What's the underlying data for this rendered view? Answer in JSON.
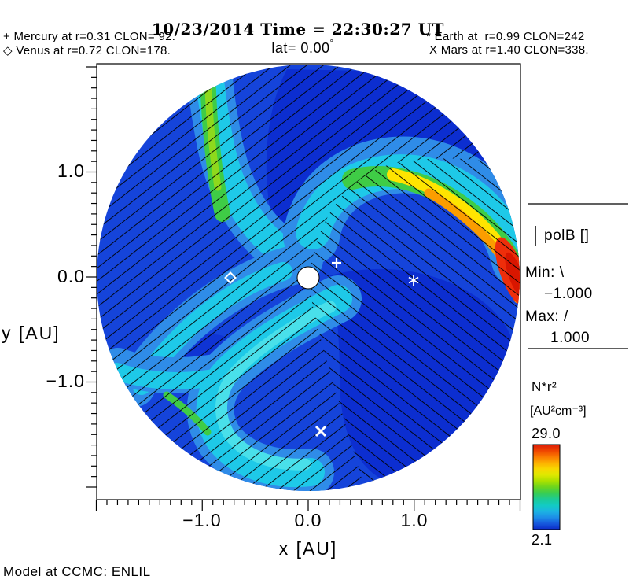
{
  "title": {
    "date_time": "10/23/2014 Time = 22:30:27 UT",
    "latitude": "lat= 0.00",
    "degree_symbol": "°"
  },
  "planet_labels": {
    "mercury": {
      "symbol": "+",
      "text": "Mercury at r=0.31 CLON= 92."
    },
    "venus": {
      "symbol": "◇",
      "text": "Venus at r=0.72 CLON=178."
    },
    "earth": {
      "symbol": "*",
      "text": "Earth at  r=0.99 CLON=242"
    },
    "mars": {
      "symbol": "X",
      "text": "Mars at r=1.40 CLON=338."
    }
  },
  "axes": {
    "x_label": "x [AU]",
    "y_label": "y [AU]",
    "x_ticks": [
      "−1.0",
      "0.0",
      "1.0"
    ],
    "y_ticks": [
      "1.0",
      "0.0",
      "−1.0"
    ]
  },
  "polarity_legend": {
    "sample": "|",
    "title": "polB []",
    "min_label": "Min:",
    "min_symbol": "\\",
    "min_value": "−1.000",
    "max_label": "Max:",
    "max_symbol": "/",
    "max_value": "1.000"
  },
  "colorbar": {
    "quantity": "N*r²",
    "units": "[AU²cm⁻³]",
    "max": "29.0",
    "min": "2.1",
    "palette_top_to_bottom": [
      "#dd1c08",
      "#ef4400",
      "#fa7a00",
      "#fdae00",
      "#f8d800",
      "#dfe800",
      "#abe100",
      "#6cd51e",
      "#38cd52",
      "#1ccb96",
      "#12cbc4",
      "#1cb4e2",
      "#1d8ee8",
      "#1659dd",
      "#0c2ac8"
    ]
  },
  "footer": {
    "model_label": "Model at CCMC: ENLIL"
  },
  "chart_data": {
    "type": "heatmap",
    "title": "10/23/2014 Time = 22:30:27 UT lat= 0.00°",
    "description": "ENLIL heliospheric MHD simulation, ecliptic-plane polar cut of scaled solar-wind density with magnetic polarity hatching",
    "xlabel": "x [AU]",
    "ylabel": "y [AU]",
    "x_range_au": [
      -2.0,
      2.0
    ],
    "y_range_au": [
      -2.0,
      2.0
    ],
    "disk_radius_au": 2.0,
    "color_scale": {
      "quantity": "N*r²",
      "units": "AU²cm⁻³",
      "min": 2.1,
      "max": 29.0,
      "palette": "rainbow (blue low to red high)"
    },
    "polarity_overlay": {
      "quantity": "polB",
      "min": -1.0,
      "max": 1.0,
      "negative_hatch": "\\",
      "positive_hatch": "/"
    },
    "bodies": [
      {
        "name": "Sun",
        "symbol": "white disk",
        "x_au": 0.0,
        "y_au": 0.0
      },
      {
        "name": "Mercury",
        "symbol": "+",
        "r_au": 0.31,
        "clon_deg": 92,
        "plotted_x_au": 0.27,
        "plotted_y_au": 0.14
      },
      {
        "name": "Venus",
        "symbol": "◇",
        "r_au": 0.72,
        "clon_deg": 178,
        "plotted_x_au": -0.73,
        "plotted_y_au": 0.0
      },
      {
        "name": "Earth",
        "symbol": "*",
        "r_au": 0.99,
        "clon_deg": 242,
        "plotted_x_au": 0.99,
        "plotted_y_au": 0.0
      },
      {
        "name": "Mars",
        "symbol": "X",
        "r_au": 1.4,
        "clon_deg": 338,
        "plotted_x_au": 0.12,
        "plotted_y_au": -1.45
      }
    ],
    "annotations": [
      "green-yellow high density spiral stream toward upper left rim (~115 deg)",
      "bright corotating stream spiraling from above Sun to right rim, peaking red (~29 N*r^2) at (2.0, ~0.05) AU",
      "cyan spiral stream curling beneath Sun around lower left",
      "hatching flips from / to \\ across the stream interfaces (polB sectors)"
    ]
  }
}
